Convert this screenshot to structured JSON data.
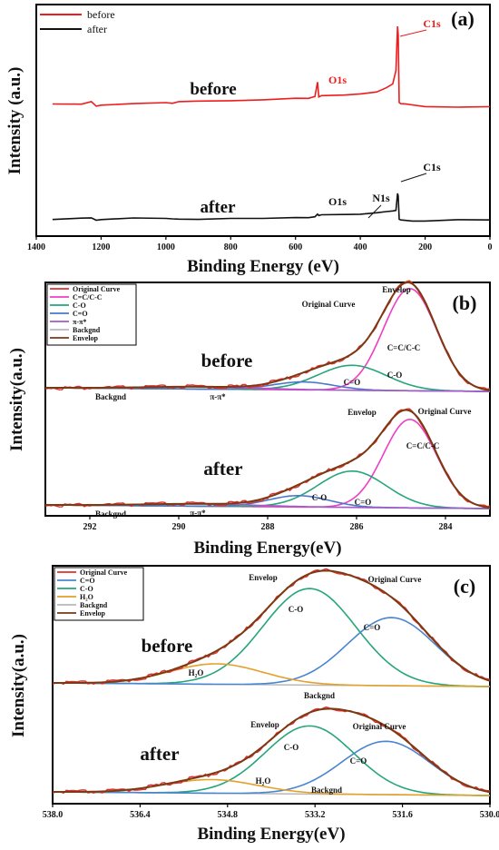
{
  "figure": {
    "ylabel": "Intensity(a.u.)",
    "colors": {
      "before": "#ee1c1c",
      "after": "#111111",
      "original": "#e03030",
      "cc": "#ee3fc3",
      "co": "#26a57a",
      "c_eq_o_b": "#4a78c8",
      "pi": "#a45ac8",
      "backgnd": "#b8b8b8",
      "envelop": "#7b3a12",
      "c_eq_o_c": "#4a86d0",
      "h2o": "#e3a12a"
    }
  },
  "chart_data": [
    {
      "panel": "(a)",
      "type": "line",
      "xlabel": "Binding Energy (eV)",
      "ylabel": "Intensity (a.u.)",
      "xlim": [
        1400,
        0
      ],
      "xticks": [
        "1400",
        "1200",
        "1000",
        "800",
        "600",
        "400",
        "200",
        "0"
      ],
      "legend": {
        "placement": "top-left",
        "entries": [
          "before",
          "after"
        ]
      },
      "series": [
        {
          "name": "before",
          "x": [
            1350,
            1260,
            1230,
            1215,
            1200,
            1100,
            1000,
            980,
            960,
            900,
            800,
            700,
            600,
            560,
            540,
            532,
            528,
            520,
            450,
            400,
            350,
            320,
            300,
            290,
            285,
            283,
            280,
            275,
            260,
            240,
            200,
            100,
            0
          ],
          "y": [
            0.04,
            0.05,
            0.07,
            0.02,
            0.03,
            0.05,
            0.065,
            0.05,
            0.06,
            0.07,
            0.08,
            0.09,
            0.1,
            0.11,
            0.13,
            0.32,
            0.14,
            0.15,
            0.16,
            0.17,
            0.2,
            0.25,
            0.3,
            0.45,
            1.0,
            0.9,
            0.05,
            0.03,
            0.03,
            0.02,
            0.02,
            0.01,
            0.01
          ]
        },
        {
          "name": "after",
          "x": [
            1350,
            1260,
            1230,
            1215,
            1200,
            1100,
            1000,
            980,
            960,
            900,
            800,
            700,
            600,
            560,
            540,
            532,
            528,
            520,
            450,
            400,
            350,
            320,
            300,
            290,
            285,
            283,
            280,
            275,
            260,
            240,
            200,
            100,
            0
          ],
          "y": [
            0.03,
            0.04,
            0.05,
            0.01,
            0.02,
            0.04,
            0.05,
            0.035,
            0.045,
            0.05,
            0.06,
            0.065,
            0.075,
            0.085,
            0.1,
            0.16,
            0.1,
            0.11,
            0.12,
            0.13,
            0.15,
            0.18,
            0.2,
            0.25,
            0.62,
            0.55,
            0.04,
            0.02,
            0.02,
            0.015,
            0.015,
            0.01,
            0.01
          ]
        }
      ],
      "annotations": [
        {
          "text": "before",
          "series": "before"
        },
        {
          "text": "after",
          "series": "after"
        },
        {
          "text": "O1s",
          "x": 532,
          "series": "before"
        },
        {
          "text": "C1s",
          "x": 285,
          "series": "before"
        },
        {
          "text": "O1s",
          "x": 532,
          "series": "after"
        },
        {
          "text": "N1s",
          "x": 400,
          "series": "after"
        },
        {
          "text": "C1s",
          "x": 285,
          "series": "after"
        }
      ]
    },
    {
      "panel": "(b)",
      "type": "line",
      "xlabel": "Binding Energy(eV)",
      "ylabel": "Intensity(a.u.)",
      "xlim": [
        293,
        283
      ],
      "xticks": [
        292,
        290,
        288,
        286,
        284
      ],
      "legend": {
        "placement": "top-left",
        "entries": [
          "Original Curve",
          "C=C/C-C",
          "C-O",
          "C=O",
          "π-π*",
          "Backgnd",
          "Envelop"
        ]
      },
      "components": {
        "before": [
          {
            "name": "C=C/C-C",
            "center": 284.8,
            "height": 0.9,
            "fwhm": 1.4
          },
          {
            "name": "C-O",
            "center": 286.1,
            "height": 0.22,
            "fwhm": 1.8
          },
          {
            "name": "C=O",
            "center": 287.2,
            "height": 0.07,
            "fwhm": 1.6
          },
          {
            "name": "π-π*",
            "center": 289.5,
            "height": 0.02,
            "fwhm": 3.0
          }
        ],
        "after": [
          {
            "name": "C=C/C-C",
            "center": 284.8,
            "height": 0.78,
            "fwhm": 1.4
          },
          {
            "name": "C-O",
            "center": 286.1,
            "height": 0.32,
            "fwhm": 1.8
          },
          {
            "name": "C=O",
            "center": 287.3,
            "height": 0.1,
            "fwhm": 1.6
          },
          {
            "name": "π-π*",
            "center": 289.5,
            "height": 0.02,
            "fwhm": 3.0
          }
        ]
      },
      "annotations": {
        "before": [
          "before",
          "Envelop",
          "Original Curve",
          "C=C/C-C",
          "C-O",
          "C=O",
          "Backgnd",
          "π-π*"
        ],
        "after": [
          "after",
          "Envelop",
          "Original Curve",
          "C=C/C-C",
          "C-O",
          "C=O",
          "Backgnd",
          "π-π*"
        ]
      }
    },
    {
      "panel": "(c)",
      "type": "line",
      "xlabel": "Binding Energy(eV)",
      "ylabel": "Intensity(a.u.)",
      "xlim": [
        538,
        530
      ],
      "xticks": [
        "538.0",
        "536.4",
        "534.8",
        "533.2",
        "531.6",
        "530.0"
      ],
      "legend": {
        "placement": "top-left",
        "entries": [
          "Original Curve",
          "C=O",
          "C-O",
          "H₂O",
          "Backgnd",
          "Envelop"
        ]
      },
      "components": {
        "before": [
          {
            "name": "C-O",
            "center": 533.3,
            "height": 0.85,
            "fwhm": 2.0
          },
          {
            "name": "C=O",
            "center": 531.8,
            "height": 0.6,
            "fwhm": 1.9
          },
          {
            "name": "H₂O",
            "center": 535.0,
            "height": 0.18,
            "fwhm": 2.0
          }
        ],
        "after": [
          {
            "name": "C-O",
            "center": 533.3,
            "height": 0.6,
            "fwhm": 1.9
          },
          {
            "name": "C=O",
            "center": 531.9,
            "height": 0.47,
            "fwhm": 1.9
          },
          {
            "name": "H₂O",
            "center": 535.1,
            "height": 0.12,
            "fwhm": 2.0
          }
        ]
      },
      "annotations": {
        "before": [
          "before",
          "Envelop",
          "Original Curve",
          "C-O",
          "C=O",
          "H₂O",
          "Backgnd"
        ],
        "after": [
          "after",
          "Envelop",
          "Original Curve",
          "C-O",
          "C=O",
          "H₂O",
          "Backgnd"
        ]
      }
    }
  ]
}
